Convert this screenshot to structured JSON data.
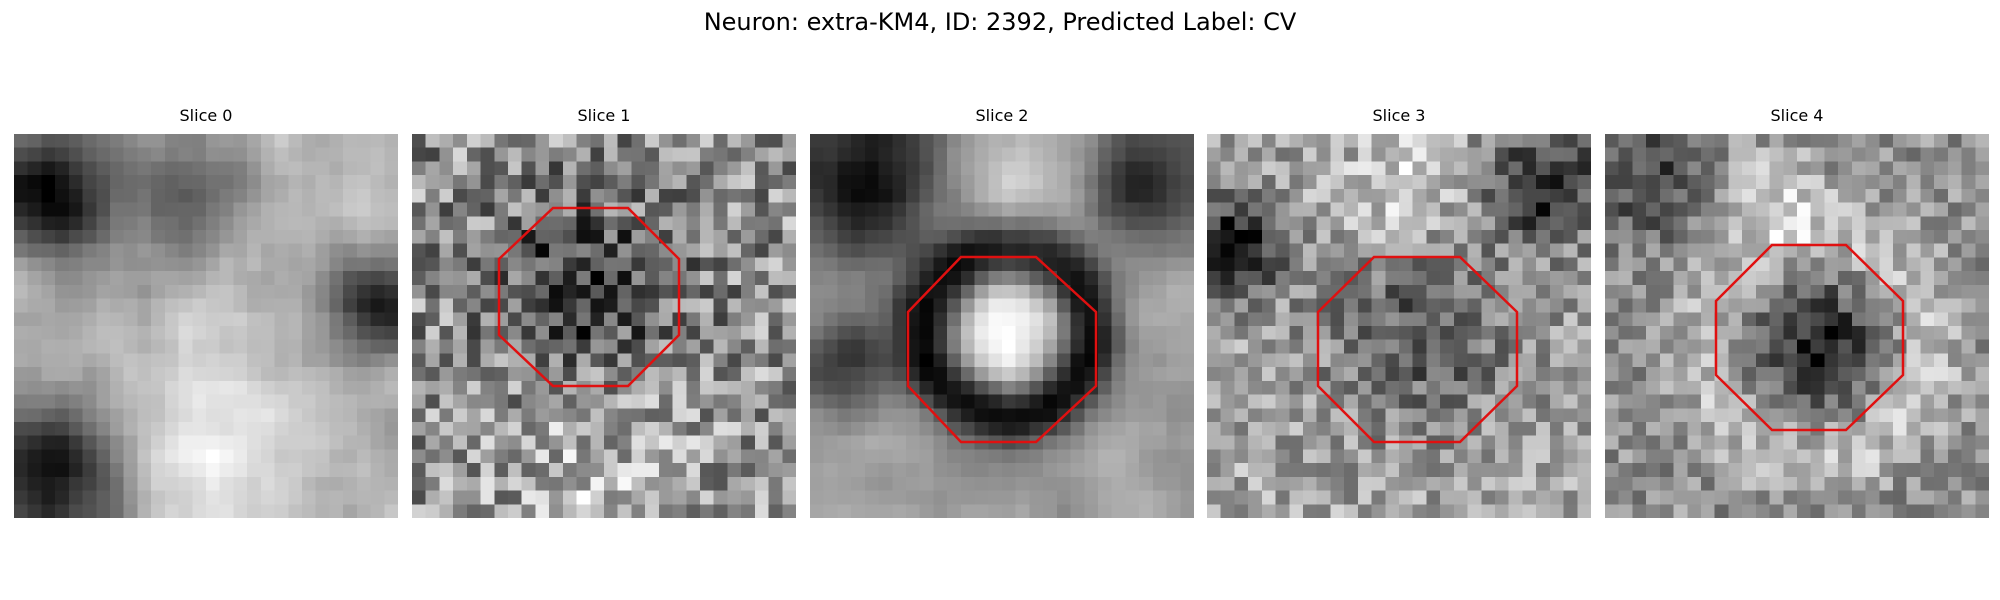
{
  "figure": {
    "title": "Neuron: extra-KM4, ID: 2392, Predicted Label: CV",
    "overlay_color": "#e01010",
    "colormap": "gray"
  },
  "panels": [
    {
      "title": "Slice 0",
      "has_octagon": false,
      "pattern": "bright-tissue-dark-left-corners-and-right-spot"
    },
    {
      "title": "Slice 1",
      "has_octagon": true,
      "pattern": "dark-center-in-noisy-gray"
    },
    {
      "title": "Slice 2",
      "has_octagon": true,
      "pattern": "bright-center-dark-ring"
    },
    {
      "title": "Slice 3",
      "has_octagon": true,
      "pattern": "gray-center-bright-surround"
    },
    {
      "title": "Slice 4",
      "has_octagon": true,
      "pattern": "dark-center-bright-surround"
    }
  ]
}
